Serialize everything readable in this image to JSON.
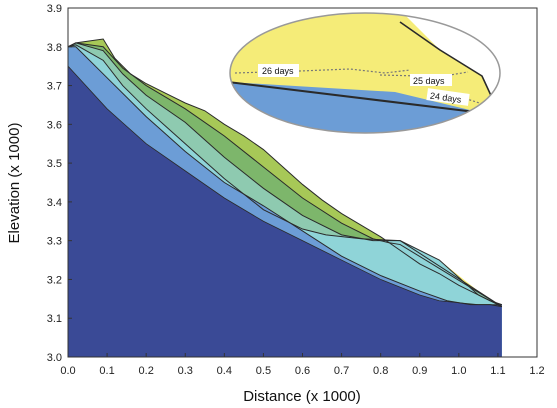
{
  "chart_data": {
    "type": "area",
    "title": "",
    "xlabel": "Distance (x 1000)",
    "ylabel": "Elevation (x 1000)",
    "xlim": [
      0.0,
      1.2
    ],
    "ylim": [
      3.0,
      3.9
    ],
    "x_ticks": [
      "0.0",
      "0.1",
      "0.2",
      "0.3",
      "0.4",
      "0.5",
      "0.6",
      "0.7",
      "0.8",
      "0.9",
      "1.0",
      "1.1",
      "1.2"
    ],
    "y_ticks": [
      "3.0",
      "3.1",
      "3.2",
      "3.3",
      "3.4",
      "3.5",
      "3.6",
      "3.7",
      "3.8",
      "3.9"
    ],
    "grid": false,
    "colors": {
      "bedrock": "#3a4a96",
      "layer_blue": "#6c9dd6",
      "layer_cyan": "#8fd4d8",
      "layer_teal": "#8ecab0",
      "layer_green": "#7db66b",
      "layer_olive": "#a7c857",
      "layer_yellow": "#f5ec78",
      "outline": "#2a2a2a"
    },
    "series": [
      {
        "key": "surface",
        "color": "#a7c857",
        "x": [
          0.0,
          0.02,
          0.09,
          0.12,
          0.16,
          0.2,
          0.25,
          0.3,
          0.35,
          0.4,
          0.45,
          0.5,
          0.55,
          0.6,
          0.65,
          0.7,
          0.75,
          0.8,
          0.85,
          0.9,
          0.95,
          1.0,
          1.05,
          1.08,
          1.11
        ],
        "y": [
          3.8,
          3.81,
          3.82,
          3.77,
          3.73,
          3.705,
          3.68,
          3.655,
          3.635,
          3.6,
          3.57,
          3.535,
          3.49,
          3.445,
          3.405,
          3.37,
          3.34,
          3.31,
          3.275,
          3.24,
          3.215,
          3.185,
          3.16,
          3.145,
          3.135
        ]
      },
      {
        "key": "layer4",
        "color": "#7db66b",
        "x": [
          0.0,
          0.02,
          0.09,
          0.14,
          0.2,
          0.3,
          0.4,
          0.5,
          0.6,
          0.7,
          0.78,
          0.82,
          0.85,
          1.11
        ],
        "y": [
          3.8,
          3.81,
          3.8,
          3.745,
          3.7,
          3.64,
          3.57,
          3.49,
          3.41,
          3.345,
          3.305,
          3.295,
          3.29,
          3.13
        ]
      },
      {
        "key": "layer3",
        "color": "#8ecab0",
        "x": [
          0.0,
          0.02,
          0.09,
          0.14,
          0.2,
          0.3,
          0.4,
          0.5,
          0.6,
          0.7,
          0.78,
          0.82,
          0.85,
          1.11
        ],
        "y": [
          3.8,
          3.81,
          3.79,
          3.73,
          3.675,
          3.605,
          3.515,
          3.435,
          3.365,
          3.315,
          3.3,
          3.3,
          3.3,
          3.13
        ]
      },
      {
        "key": "layer2",
        "color": "#8fd4d8",
        "x": [
          0.0,
          0.02,
          0.09,
          0.14,
          0.2,
          0.3,
          0.4,
          0.5,
          0.6,
          0.66,
          0.75,
          0.85,
          0.95,
          1.05,
          1.11
        ],
        "y": [
          3.8,
          3.805,
          3.765,
          3.7,
          3.64,
          3.55,
          3.46,
          3.38,
          3.33,
          3.315,
          3.305,
          3.3,
          3.25,
          3.16,
          3.13
        ]
      },
      {
        "key": "layer1",
        "color": "#6c9dd6",
        "x": [
          0.0,
          0.02,
          0.1,
          0.2,
          0.3,
          0.4,
          0.5,
          0.6,
          0.7,
          0.8,
          0.9,
          0.97,
          1.03,
          1.08,
          1.11
        ],
        "y": [
          3.8,
          3.8,
          3.72,
          3.62,
          3.53,
          3.45,
          3.39,
          3.325,
          3.26,
          3.21,
          3.17,
          3.145,
          3.135,
          3.135,
          3.13
        ]
      },
      {
        "key": "bedrock",
        "color": "#3a4a96",
        "x": [
          0.0,
          0.1,
          0.2,
          0.3,
          0.4,
          0.5,
          0.6,
          0.7,
          0.8,
          0.9,
          0.95,
          1.0,
          1.05,
          1.08,
          1.11
        ],
        "y": [
          3.75,
          3.64,
          3.55,
          3.48,
          3.41,
          3.35,
          3.3,
          3.25,
          3.2,
          3.16,
          3.145,
          3.14,
          3.135,
          3.135,
          3.135
        ]
      }
    ],
    "yellow_wedge": {
      "x": [
        0.82,
        0.87,
        0.95,
        1.0,
        1.05,
        1.08
      ],
      "y": [
        3.3,
        3.29,
        3.25,
        3.21,
        3.17,
        3.145
      ]
    },
    "inset": {
      "labels": [
        "26 days",
        "25 days",
        "24 days"
      ]
    }
  }
}
